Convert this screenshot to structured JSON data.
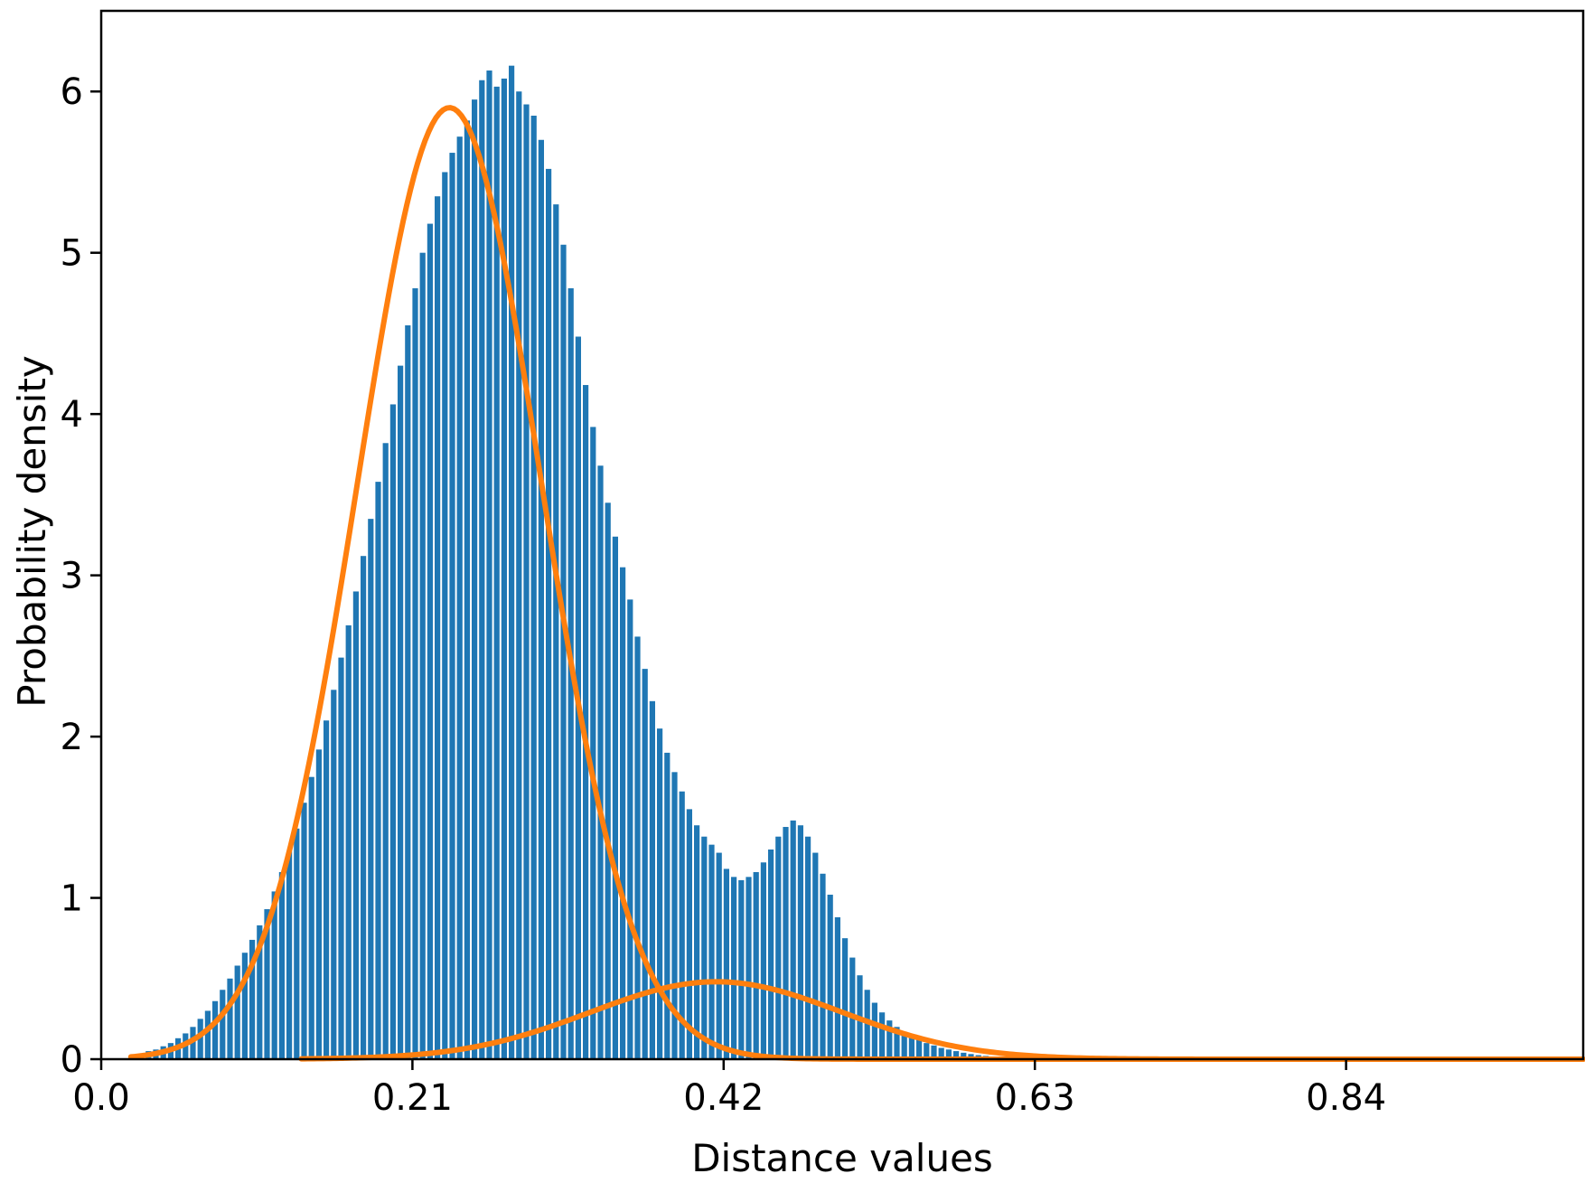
{
  "chart_data": {
    "type": "bar",
    "title": "",
    "xlabel": "Distance values",
    "ylabel": "Probability density",
    "xlim": [
      0.0,
      1.0
    ],
    "ylim": [
      0,
      6.5
    ],
    "x_ticks": [
      0.0,
      0.21,
      0.42,
      0.63,
      0.84
    ],
    "x_tick_labels": [
      "0.0",
      "0.21",
      "0.42",
      "0.63",
      "0.84"
    ],
    "y_ticks": [
      0,
      1,
      2,
      3,
      4,
      5,
      6
    ],
    "y_tick_labels": [
      "0",
      "1",
      "2",
      "3",
      "4",
      "5",
      "6"
    ],
    "grid": false,
    "legend": "none",
    "bar_color": "#1f77b4",
    "curve_color": "#ff7f0e",
    "histogram": {
      "bin_start": 0.02,
      "bin_width": 0.005,
      "values": [
        0.02,
        0.03,
        0.05,
        0.06,
        0.08,
        0.1,
        0.13,
        0.16,
        0.2,
        0.25,
        0.3,
        0.36,
        0.43,
        0.5,
        0.58,
        0.66,
        0.74,
        0.83,
        0.93,
        1.04,
        1.16,
        1.29,
        1.43,
        1.59,
        1.75,
        1.92,
        2.1,
        2.29,
        2.49,
        2.69,
        2.9,
        3.12,
        3.35,
        3.58,
        3.82,
        4.06,
        4.3,
        4.55,
        4.78,
        5.0,
        5.18,
        5.35,
        5.5,
        5.62,
        5.72,
        5.82,
        5.95,
        6.07,
        6.13,
        6.03,
        6.08,
        6.16,
        6.0,
        5.92,
        5.85,
        5.7,
        5.52,
        5.3,
        5.05,
        4.78,
        4.48,
        4.18,
        3.92,
        3.68,
        3.45,
        3.24,
        3.05,
        2.85,
        2.62,
        2.42,
        2.22,
        2.05,
        1.9,
        1.78,
        1.66,
        1.55,
        1.45,
        1.38,
        1.33,
        1.28,
        1.18,
        1.13,
        1.11,
        1.13,
        1.16,
        1.22,
        1.3,
        1.38,
        1.44,
        1.48,
        1.45,
        1.38,
        1.28,
        1.15,
        1.02,
        0.88,
        0.75,
        0.63,
        0.52,
        0.43,
        0.35,
        0.29,
        0.24,
        0.2,
        0.17,
        0.14,
        0.12,
        0.1,
        0.085,
        0.07,
        0.06,
        0.05,
        0.04,
        0.032,
        0.025,
        0.02,
        0.015,
        0.01,
        0.007,
        0.005
      ]
    },
    "series": [
      {
        "type": "gaussian",
        "mean": 0.235,
        "sd": 0.062,
        "peak": 5.9,
        "x_start": 0.02,
        "x_end": 1.0
      },
      {
        "type": "gaussian",
        "mean": 0.415,
        "sd": 0.085,
        "peak": 0.48,
        "x_start": 0.135,
        "x_end": 1.0
      }
    ]
  }
}
